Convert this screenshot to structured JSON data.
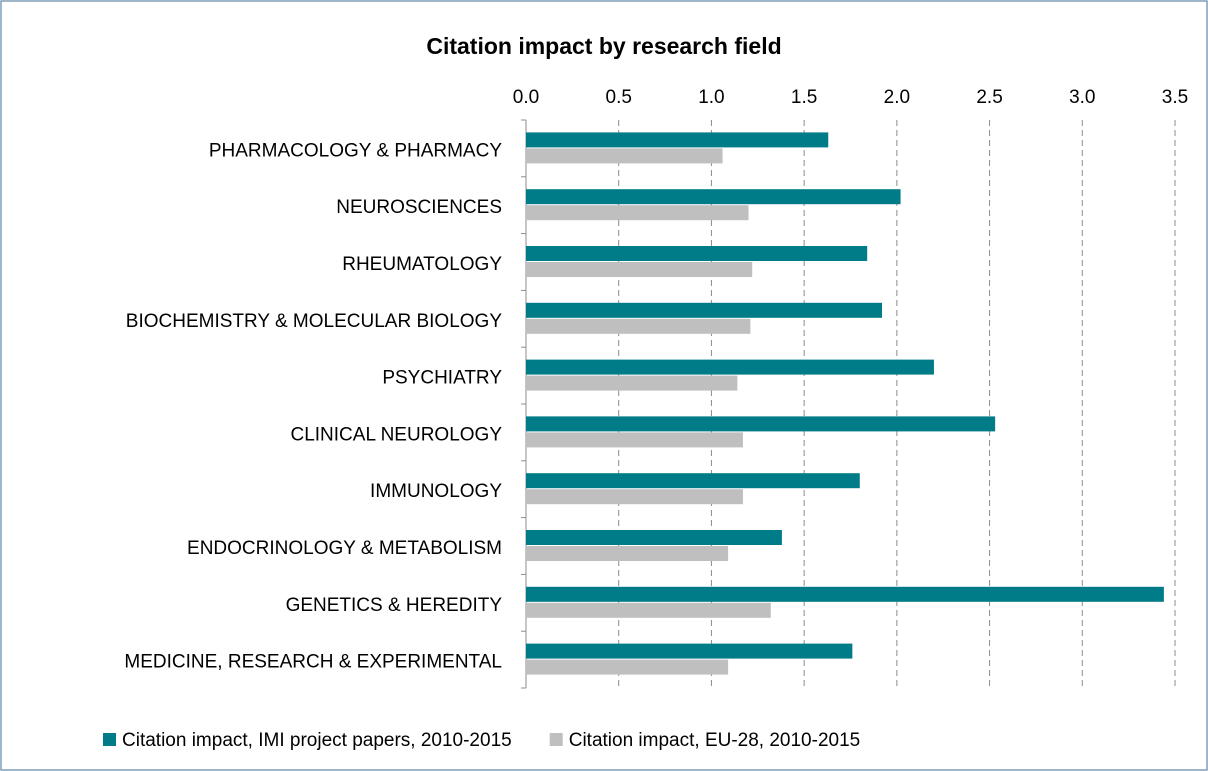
{
  "chart_data": {
    "type": "hbar",
    "title": "Citation impact by research field",
    "categories": [
      "PHARMACOLOGY & PHARMACY",
      "NEUROSCIENCES",
      "RHEUMATOLOGY",
      "BIOCHEMISTRY & MOLECULAR BIOLOGY",
      "PSYCHIATRY",
      "CLINICAL NEUROLOGY",
      "IMMUNOLOGY",
      "ENDOCRINOLOGY & METABOLISM",
      "GENETICS & HEREDITY",
      "MEDICINE, RESEARCH & EXPERIMENTAL"
    ],
    "series": [
      {
        "name": "Citation impact, IMI project papers, 2010-2015",
        "color": "#007c89",
        "values": [
          1.63,
          2.02,
          1.84,
          1.92,
          2.2,
          2.53,
          1.8,
          1.38,
          3.44,
          1.76
        ]
      },
      {
        "name": "Citation impact, EU-28, 2010-2015",
        "color": "#bfbfbf",
        "values": [
          1.06,
          1.2,
          1.22,
          1.21,
          1.14,
          1.17,
          1.17,
          1.09,
          1.32,
          1.09
        ]
      }
    ],
    "xlim": [
      0,
      3.5
    ],
    "xticks": [
      {
        "value": 0,
        "label": "0.0"
      },
      0.5,
      {
        "value": 1,
        "label": "1.0"
      },
      1.5,
      {
        "value": 2,
        "label": "2.0"
      },
      2.5,
      {
        "value": 3,
        "label": "3.0"
      },
      3.5
    ],
    "grid": true,
    "legend": "bottom"
  }
}
